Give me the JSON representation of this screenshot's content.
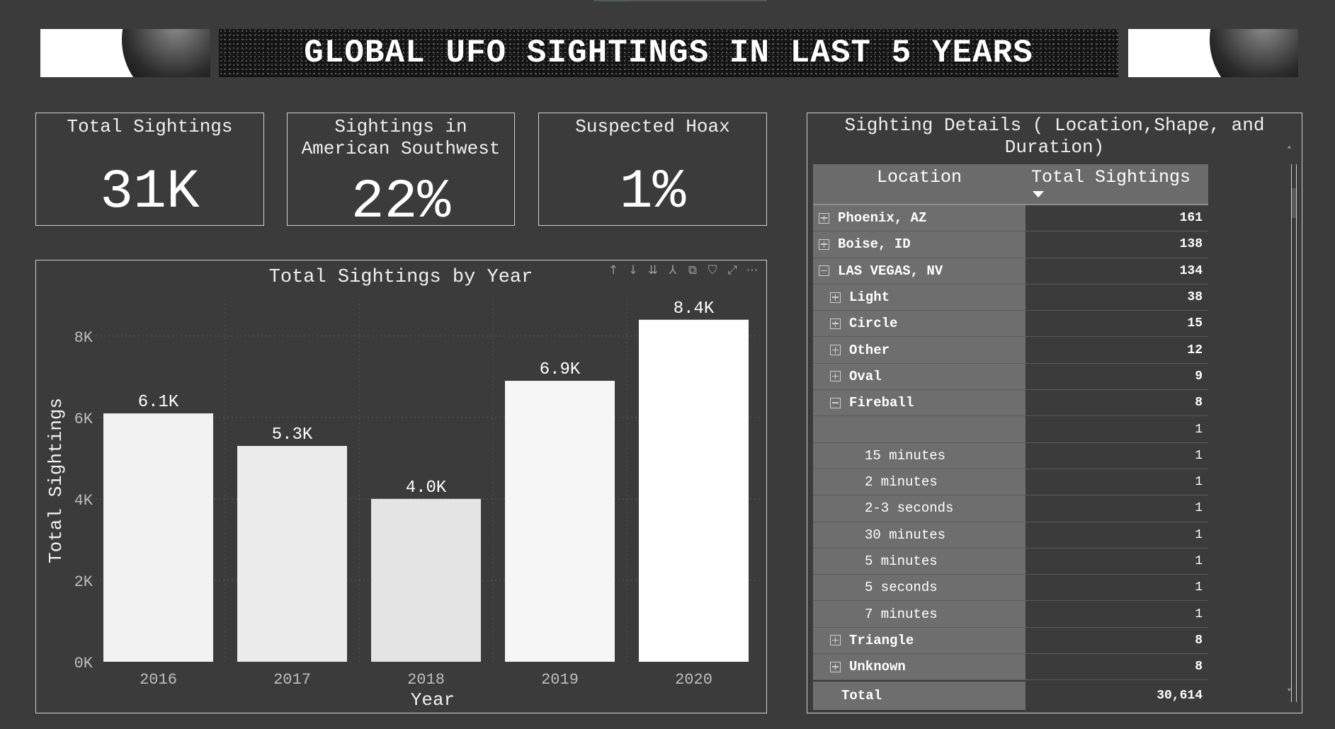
{
  "header": {
    "title": "GLOBAL UFO SIGHTINGS IN LAST 5 YEARS"
  },
  "kpis": {
    "total_sightings": {
      "label": "Total Sightings",
      "value": "31K"
    },
    "southwest": {
      "label_line1": "Sightings in",
      "label_line2": "American Southwest",
      "value": "22%"
    },
    "hoax": {
      "label": "Suspected Hoax",
      "value": "1%"
    }
  },
  "chart_toolbar": {
    "icons": [
      "arrow-up-icon",
      "arrow-down-icon",
      "double-arrow-down-icon",
      "hierarchy-expand-icon",
      "copy-icon",
      "filter-icon",
      "focus-mode-icon",
      "more-options-icon"
    ],
    "glyphs": [
      "↑",
      "↓",
      "⇊",
      "⅄",
      "⧉",
      "⛉",
      "⤢",
      "⋯"
    ]
  },
  "chart_data": {
    "type": "bar",
    "title": "Total Sightings by Year",
    "xlabel": "Year",
    "ylabel": "Total Sightings",
    "categories": [
      "2016",
      "2017",
      "2018",
      "2019",
      "2020"
    ],
    "values": [
      6100,
      5300,
      4000,
      6900,
      8400
    ],
    "data_labels": [
      "6.1K",
      "5.3K",
      "4.0K",
      "6.9K",
      "8.4K"
    ],
    "bar_colors": [
      "#f2f2f2",
      "#ececec",
      "#e4e4e4",
      "#f6f6f6",
      "#ffffff"
    ],
    "ylim": [
      0,
      8900
    ],
    "yticks": [
      0,
      2000,
      4000,
      6000,
      8000
    ],
    "ytick_labels": [
      "0K",
      "2K",
      "4K",
      "6K",
      "8K"
    ],
    "grid": true
  },
  "table": {
    "title": "Sighting Details ( Location,Shape, and Duration)",
    "columns": [
      "Location",
      "Total Sightings"
    ],
    "rows": [
      {
        "level": 0,
        "toggle": "plus",
        "label": "Phoenix, AZ",
        "value": "161"
      },
      {
        "level": 0,
        "toggle": "plus",
        "label": "Boise, ID",
        "value": "138"
      },
      {
        "level": 0,
        "toggle": "minus",
        "label": "LAS VEGAS, NV",
        "value": "134"
      },
      {
        "level": 1,
        "toggle": "plus",
        "label": "Light",
        "value": "38"
      },
      {
        "level": 1,
        "toggle": "plus",
        "label": "Circle",
        "value": "15"
      },
      {
        "level": 1,
        "toggle": "plus",
        "label": "Other",
        "value": "12"
      },
      {
        "level": 1,
        "toggle": "plus",
        "label": "Oval",
        "value": "9"
      },
      {
        "level": 1,
        "toggle": "minus",
        "label": "Fireball",
        "value": "8"
      },
      {
        "level": 2,
        "toggle": "none",
        "label": "",
        "value": "1"
      },
      {
        "level": 2,
        "toggle": "none",
        "label": "15 minutes",
        "value": "1"
      },
      {
        "level": 2,
        "toggle": "none",
        "label": "2 minutes",
        "value": "1"
      },
      {
        "level": 2,
        "toggle": "none",
        "label": "2-3 seconds",
        "value": "1"
      },
      {
        "level": 2,
        "toggle": "none",
        "label": "30 minutes",
        "value": "1"
      },
      {
        "level": 2,
        "toggle": "none",
        "label": "5 minutes",
        "value": "1"
      },
      {
        "level": 2,
        "toggle": "none",
        "label": "5 seconds",
        "value": "1"
      },
      {
        "level": 2,
        "toggle": "none",
        "label": "7 minutes",
        "value": "1"
      },
      {
        "level": 1,
        "toggle": "plus",
        "label": "Triangle",
        "value": "8"
      },
      {
        "level": 1,
        "toggle": "plus",
        "label": "Unknown",
        "value": "8"
      }
    ],
    "total": {
      "label": "Total",
      "value": "30,614"
    },
    "scroll_up": "˄",
    "scroll_down": "˅"
  }
}
